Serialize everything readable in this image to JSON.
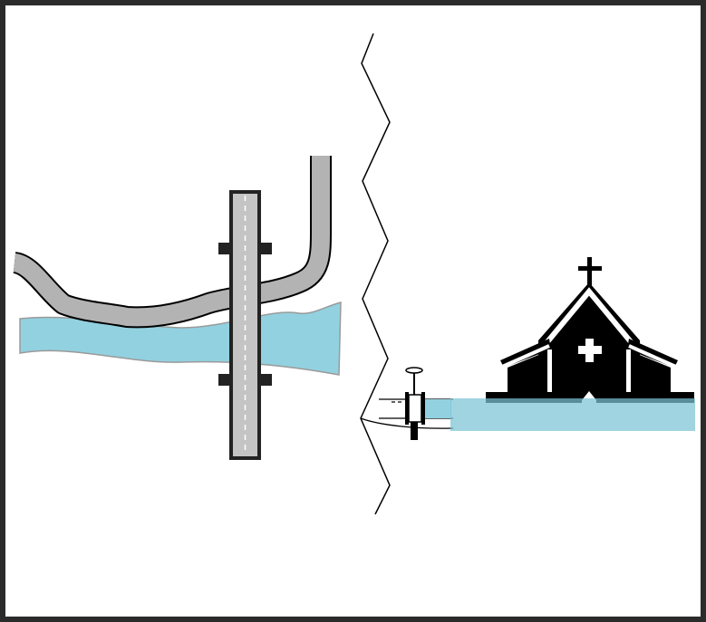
{
  "diagram": {
    "description_text": "",
    "colors": {
      "frame": "#2b2b2b",
      "water": "#92d1e0",
      "water_edge": "#9a9a9a",
      "road": "#b3b3b3",
      "road_outline": "#000000",
      "bridge_fill": "#c4c4c4",
      "bridge_outline": "#222222",
      "bridge_centerline": "#ffffff",
      "church": "#000000",
      "flood_band": "#7cc3d4",
      "break_line": "#000000"
    },
    "icons": {
      "left_scene": "bridge-over-river-icon",
      "break": "zigzag-break-line-icon",
      "valve": "pipe-valve-icon",
      "building": "church-icon"
    }
  }
}
